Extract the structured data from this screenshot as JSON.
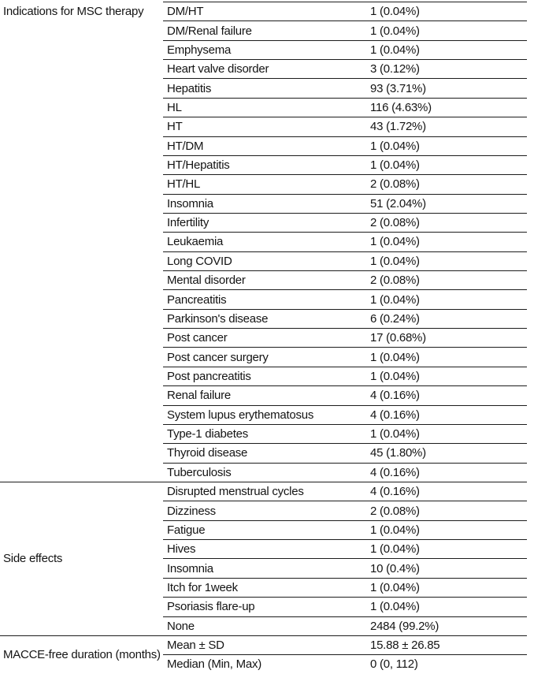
{
  "colors": {
    "background": "#ffffff",
    "text": "#141414",
    "rule_line": "#1c1c1c"
  },
  "table": {
    "groups": [
      {
        "label": "Indications for MSC therapy",
        "label_align": "top",
        "rows": [
          {
            "item": "DM/HT",
            "value": "1 (0.04%)"
          },
          {
            "item": "DM/Renal failure",
            "value": "1 (0.04%)"
          },
          {
            "item": "Emphysema",
            "value": "1 (0.04%)"
          },
          {
            "item": "Heart valve disorder",
            "value": "3 (0.12%)"
          },
          {
            "item": "Hepatitis",
            "value": "93 (3.71%)"
          },
          {
            "item": "HL",
            "value": "116 (4.63%)"
          },
          {
            "item": "HT",
            "value": "43 (1.72%)"
          },
          {
            "item": "HT/DM",
            "value": "1 (0.04%)"
          },
          {
            "item": "HT/Hepatitis",
            "value": "1 (0.04%)"
          },
          {
            "item": "HT/HL",
            "value": "2 (0.08%)"
          },
          {
            "item": "Insomnia",
            "value": "51 (2.04%)"
          },
          {
            "item": "Infertility",
            "value": "2 (0.08%)"
          },
          {
            "item": "Leukaemia",
            "value": "1 (0.04%)"
          },
          {
            "item": "Long COVID",
            "value": "1 (0.04%)"
          },
          {
            "item": "Mental disorder",
            "value": "2 (0.08%)"
          },
          {
            "item": "Pancreatitis",
            "value": "1 (0.04%)"
          },
          {
            "item": "Parkinson's disease",
            "value": "6 (0.24%)"
          },
          {
            "item": "Post cancer",
            "value": "17 (0.68%)"
          },
          {
            "item": "Post cancer surgery",
            "value": "1 (0.04%)"
          },
          {
            "item": "Post pancreatitis",
            "value": "1 (0.04%)"
          },
          {
            "item": "Renal failure",
            "value": "4 (0.16%)"
          },
          {
            "item": "System lupus erythematosus",
            "value": "4 (0.16%)"
          },
          {
            "item": "Type-1 diabetes",
            "value": "1 (0.04%)"
          },
          {
            "item": "Thyroid disease",
            "value": "45 (1.80%)"
          },
          {
            "item": "Tuberculosis",
            "value": "4 (0.16%)"
          }
        ]
      },
      {
        "label": "Side effects",
        "label_align": "center",
        "rows": [
          {
            "item": "Disrupted menstrual cycles",
            "value": "4 (0.16%)"
          },
          {
            "item": "Dizziness",
            "value": "2 (0.08%)"
          },
          {
            "item": "Fatigue",
            "value": "1 (0.04%)"
          },
          {
            "item": "Hives",
            "value": "1 (0.04%)"
          },
          {
            "item": "Insomnia",
            "value": "10 (0.4%)"
          },
          {
            "item": "Itch for 1week",
            "value": "1 (0.04%)"
          },
          {
            "item": "Psoriasis flare-up",
            "value": "1 (0.04%)"
          },
          {
            "item": "None",
            "value": "2484 (99.2%)"
          }
        ]
      },
      {
        "label": "MACCE-free duration (months)",
        "label_align": "center",
        "rows": [
          {
            "item": "Mean ± SD",
            "value": "15.88 ± 26.85"
          },
          {
            "item": "Median (Min, Max)",
            "value": "0 (0, 112)"
          }
        ]
      }
    ]
  }
}
